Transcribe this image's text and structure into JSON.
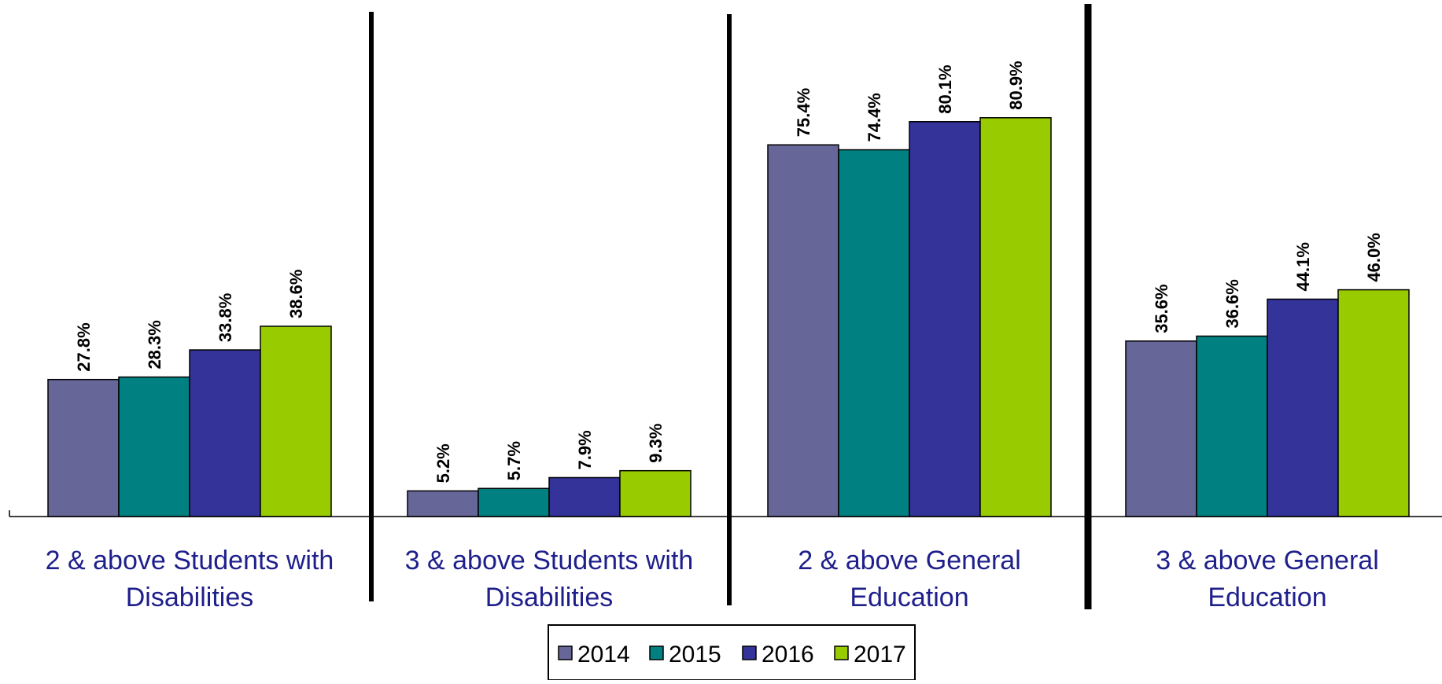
{
  "chart_data": {
    "type": "bar",
    "categories": [
      "2 & above Students with Disabilities",
      "3 & above Students with Disabilities",
      "2 & above General Education",
      "3 & above General Education"
    ],
    "category_lines": [
      [
        "2 & above Students with",
        "Disabilities"
      ],
      [
        "3 & above Students with",
        "Disabilities"
      ],
      [
        "2 & above General",
        "Education"
      ],
      [
        "3 & above General",
        "Education"
      ]
    ],
    "series": [
      {
        "name": "2014",
        "color": "#666699",
        "values": [
          27.8,
          5.2,
          75.4,
          35.6
        ],
        "labels": [
          "27.8%",
          "5.2%",
          "75.4%",
          "35.6%"
        ]
      },
      {
        "name": "2015",
        "color": "#008080",
        "values": [
          28.3,
          5.7,
          74.4,
          36.6
        ],
        "labels": [
          "28.3%",
          "5.7%",
          "74.4%",
          "36.6%"
        ]
      },
      {
        "name": "2016",
        "color": "#333399",
        "values": [
          33.8,
          7.9,
          80.1,
          44.1
        ],
        "labels": [
          "33.8%",
          "7.9%",
          "80.1%",
          "44.1%"
        ]
      },
      {
        "name": "2017",
        "color": "#99cc00",
        "values": [
          38.6,
          9.3,
          80.9,
          46.0
        ],
        "labels": [
          "38.6%",
          "9.3%",
          "80.9%",
          "46.0%"
        ]
      }
    ],
    "ylim": [
      0,
      91
    ],
    "grid": false,
    "legend_position": "bottom-center",
    "title": "",
    "xlabel": "",
    "ylabel": ""
  }
}
